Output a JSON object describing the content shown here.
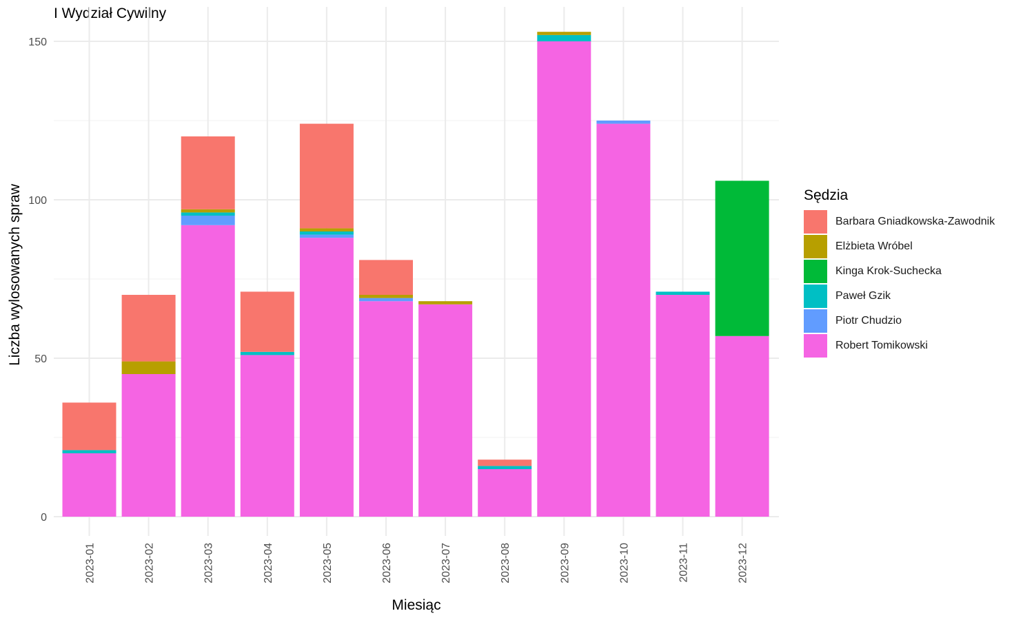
{
  "chart_data": {
    "type": "bar",
    "stacked": true,
    "subtitle": "I Wydział Cywilny",
    "xlabel": "Miesiąc",
    "ylabel": "Liczba wylosowanych spraw",
    "ylim": [
      -6,
      156
    ],
    "yticks": [
      0,
      50,
      100,
      150
    ],
    "grid": true,
    "legend_title": "Sędzia",
    "legend_position": "right",
    "categories": [
      "2023-01",
      "2023-02",
      "2023-03",
      "2023-04",
      "2023-05",
      "2023-06",
      "2023-07",
      "2023-08",
      "2023-09",
      "2023-10",
      "2023-11",
      "2023-12"
    ],
    "stack_order_bottom_to_top": [
      "Robert Tomikowski",
      "Piotr Chudzio",
      "Paweł Gzik",
      "Kinga Krok-Suchecka",
      "Elżbieta Wróbel",
      "Barbara Gniadkowska-Zawodnik"
    ],
    "series": [
      {
        "name": "Barbara Gniadkowska-Zawodnik",
        "color": "#F8766D",
        "values": [
          15,
          21,
          23,
          19,
          33,
          11,
          0,
          2,
          0,
          0,
          0,
          0
        ]
      },
      {
        "name": "Elżbieta Wróbel",
        "color": "#B79F00",
        "values": [
          0,
          4,
          1,
          0,
          1,
          1,
          1,
          0,
          1,
          0,
          0,
          0
        ]
      },
      {
        "name": "Kinga Krok-Suchecka",
        "color": "#00BA38",
        "values": [
          0,
          0,
          0,
          0,
          0,
          0,
          0,
          0,
          0,
          0,
          0,
          49
        ]
      },
      {
        "name": "Paweł Gzik",
        "color": "#00BFC4",
        "values": [
          1,
          0,
          1,
          1,
          1,
          0,
          0,
          1,
          2,
          0,
          1,
          0
        ]
      },
      {
        "name": "Piotr Chudzio",
        "color": "#619CFF",
        "values": [
          0,
          0,
          3,
          0,
          1,
          1,
          0,
          0,
          0,
          1,
          0,
          0
        ]
      },
      {
        "name": "Robert Tomikowski",
        "color": "#F564E3",
        "values": [
          20,
          45,
          92,
          51,
          88,
          68,
          67,
          15,
          150,
          124,
          70,
          57
        ]
      }
    ]
  }
}
